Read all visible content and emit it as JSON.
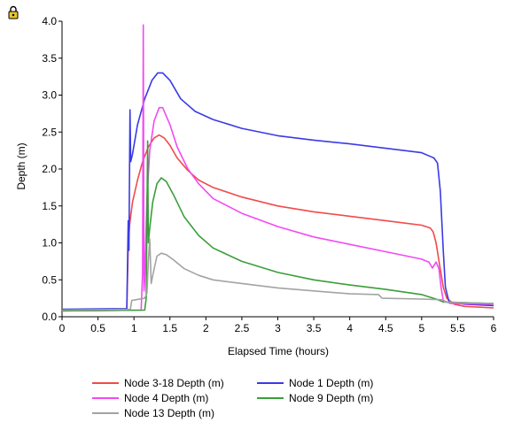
{
  "chart_data": {
    "type": "line",
    "title": "",
    "xlabel": "Elapsed Time (hours)",
    "ylabel": "Depth (m)",
    "xlim": [
      0,
      6
    ],
    "ylim": [
      0,
      4
    ],
    "xticks": [
      "0",
      "0.5",
      "1",
      "1.5",
      "2",
      "2.5",
      "3",
      "3.5",
      "4",
      "4.5",
      "5",
      "5.5",
      "6"
    ],
    "yticks": [
      "0.0",
      "0.5",
      "1.0",
      "1.5",
      "2.0",
      "2.5",
      "3.0",
      "3.5",
      "4.0"
    ],
    "grid": false,
    "legend_position": "bottom",
    "series": [
      {
        "name": "Node 3-18 Depth (m)",
        "color": "#f24a4a",
        "points": [
          [
            0,
            0.08
          ],
          [
            0.9,
            0.09
          ],
          [
            0.92,
            0.95
          ],
          [
            0.94,
            1.25
          ],
          [
            0.98,
            1.55
          ],
          [
            1.05,
            1.85
          ],
          [
            1.12,
            2.1
          ],
          [
            1.2,
            2.3
          ],
          [
            1.28,
            2.42
          ],
          [
            1.35,
            2.46
          ],
          [
            1.42,
            2.42
          ],
          [
            1.5,
            2.32
          ],
          [
            1.6,
            2.15
          ],
          [
            1.75,
            1.98
          ],
          [
            1.9,
            1.85
          ],
          [
            2.1,
            1.75
          ],
          [
            2.5,
            1.62
          ],
          [
            3,
            1.5
          ],
          [
            3.5,
            1.42
          ],
          [
            4,
            1.36
          ],
          [
            4.5,
            1.3
          ],
          [
            5,
            1.24
          ],
          [
            5.12,
            1.2
          ],
          [
            5.16,
            1.15
          ],
          [
            5.2,
            1.0
          ],
          [
            5.25,
            0.7
          ],
          [
            5.3,
            0.4
          ],
          [
            5.35,
            0.25
          ],
          [
            5.45,
            0.17
          ],
          [
            5.6,
            0.14
          ],
          [
            6,
            0.12
          ]
        ]
      },
      {
        "name": "Node 1 Depth (m)",
        "color": "#3a3ae6",
        "points": [
          [
            0,
            0.1
          ],
          [
            0.9,
            0.11
          ],
          [
            0.92,
            1.3
          ],
          [
            0.93,
            0.9
          ],
          [
            0.945,
            2.8
          ],
          [
            0.955,
            2.1
          ],
          [
            0.98,
            2.2
          ],
          [
            1.05,
            2.6
          ],
          [
            1.15,
            2.95
          ],
          [
            1.25,
            3.2
          ],
          [
            1.33,
            3.3
          ],
          [
            1.4,
            3.3
          ],
          [
            1.5,
            3.2
          ],
          [
            1.65,
            2.95
          ],
          [
            1.85,
            2.78
          ],
          [
            2.1,
            2.67
          ],
          [
            2.5,
            2.55
          ],
          [
            3,
            2.45
          ],
          [
            3.5,
            2.39
          ],
          [
            4,
            2.34
          ],
          [
            4.5,
            2.28
          ],
          [
            5,
            2.22
          ],
          [
            5.12,
            2.17
          ],
          [
            5.17,
            2.15
          ],
          [
            5.22,
            2.08
          ],
          [
            5.26,
            1.7
          ],
          [
            5.3,
            0.9
          ],
          [
            5.33,
            0.4
          ],
          [
            5.38,
            0.2
          ],
          [
            5.6,
            0.17
          ],
          [
            6,
            0.15
          ]
        ]
      },
      {
        "name": "Node 4 Depth (m)",
        "color": "#f24af2",
        "points": [
          [
            0,
            0.08
          ],
          [
            1.1,
            0.09
          ],
          [
            1.12,
            0.6
          ],
          [
            1.13,
            3.95
          ],
          [
            1.14,
            0.35
          ],
          [
            1.15,
            0.5
          ],
          [
            1.18,
            1.6
          ],
          [
            1.22,
            2.25
          ],
          [
            1.28,
            2.65
          ],
          [
            1.35,
            2.83
          ],
          [
            1.4,
            2.83
          ],
          [
            1.5,
            2.6
          ],
          [
            1.6,
            2.3
          ],
          [
            1.75,
            2.0
          ],
          [
            1.9,
            1.8
          ],
          [
            2.1,
            1.6
          ],
          [
            2.5,
            1.4
          ],
          [
            3,
            1.22
          ],
          [
            3.5,
            1.08
          ],
          [
            4,
            0.98
          ],
          [
            4.5,
            0.88
          ],
          [
            5,
            0.78
          ],
          [
            5.1,
            0.74
          ],
          [
            5.15,
            0.66
          ],
          [
            5.2,
            0.74
          ],
          [
            5.24,
            0.65
          ],
          [
            5.27,
            0.4
          ],
          [
            5.3,
            0.22
          ],
          [
            5.4,
            0.18
          ],
          [
            6,
            0.17
          ]
        ]
      },
      {
        "name": "Node 9 Depth (m)",
        "color": "#3a9e3a",
        "points": [
          [
            0,
            0.08
          ],
          [
            1.15,
            0.09
          ],
          [
            1.17,
            0.25
          ],
          [
            1.19,
            2.38
          ],
          [
            1.2,
            1.0
          ],
          [
            1.22,
            1.2
          ],
          [
            1.26,
            1.55
          ],
          [
            1.32,
            1.8
          ],
          [
            1.38,
            1.88
          ],
          [
            1.45,
            1.83
          ],
          [
            1.55,
            1.65
          ],
          [
            1.7,
            1.35
          ],
          [
            1.9,
            1.1
          ],
          [
            2.1,
            0.93
          ],
          [
            2.5,
            0.75
          ],
          [
            3,
            0.6
          ],
          [
            3.5,
            0.5
          ],
          [
            4,
            0.43
          ],
          [
            4.5,
            0.37
          ],
          [
            5,
            0.3
          ],
          [
            5.1,
            0.27
          ],
          [
            5.2,
            0.24
          ],
          [
            5.3,
            0.2
          ],
          [
            6,
            0.18
          ]
        ]
      },
      {
        "name": "Node 13 Depth (m)",
        "color": "#a3a3a3",
        "points": [
          [
            0,
            0.09
          ],
          [
            0.95,
            0.1
          ],
          [
            0.97,
            0.22
          ],
          [
            1.15,
            0.25
          ],
          [
            1.18,
            0.32
          ],
          [
            1.2,
            0.75
          ],
          [
            1.22,
            1.05
          ],
          [
            1.24,
            0.45
          ],
          [
            1.27,
            0.6
          ],
          [
            1.32,
            0.82
          ],
          [
            1.38,
            0.86
          ],
          [
            1.45,
            0.84
          ],
          [
            1.55,
            0.77
          ],
          [
            1.7,
            0.65
          ],
          [
            1.9,
            0.56
          ],
          [
            2.1,
            0.5
          ],
          [
            2.5,
            0.45
          ],
          [
            3,
            0.39
          ],
          [
            3.5,
            0.35
          ],
          [
            4,
            0.31
          ],
          [
            4.4,
            0.3
          ],
          [
            4.45,
            0.25
          ],
          [
            5,
            0.24
          ],
          [
            5.3,
            0.23
          ],
          [
            5.32,
            0.2
          ],
          [
            6,
            0.18
          ]
        ]
      }
    ]
  }
}
